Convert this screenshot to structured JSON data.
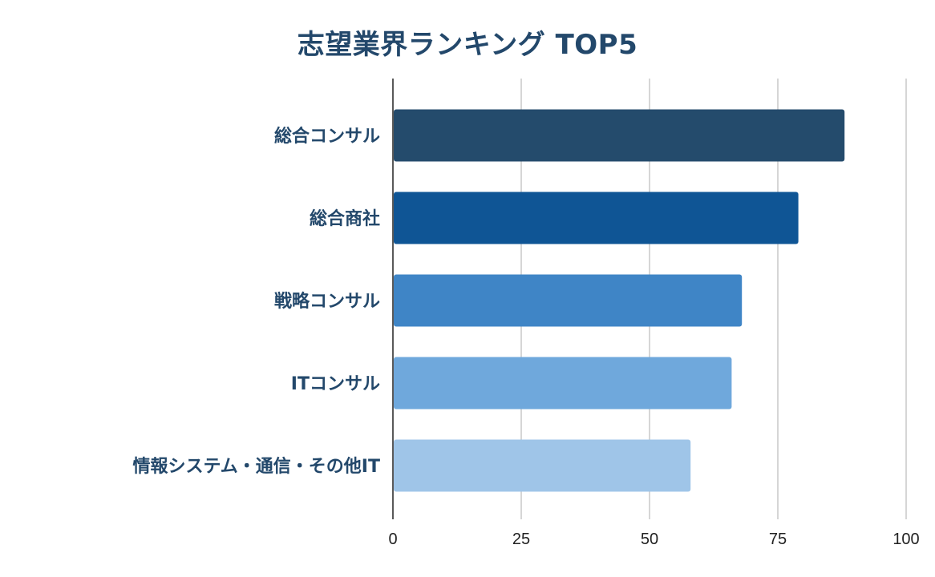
{
  "chart_data": {
    "type": "bar",
    "orientation": "horizontal",
    "title": "志望業界ランキング TOP5",
    "xlabel": "",
    "ylabel": "",
    "categories": [
      "総合コンサル",
      "総合商社",
      "戦略コンサル",
      "ITコンサル",
      "情報システム・通信・その他IT"
    ],
    "values": [
      88,
      79,
      68,
      66,
      58
    ],
    "colors": [
      "#244b6c",
      "#0f5595",
      "#3f85c6",
      "#6fa8dc",
      "#9fc5e8"
    ],
    "xlim": [
      0,
      100
    ],
    "xticks": [
      "0",
      "25",
      "50",
      "75",
      "100"
    ],
    "grid": "vertical",
    "legend": "none"
  }
}
